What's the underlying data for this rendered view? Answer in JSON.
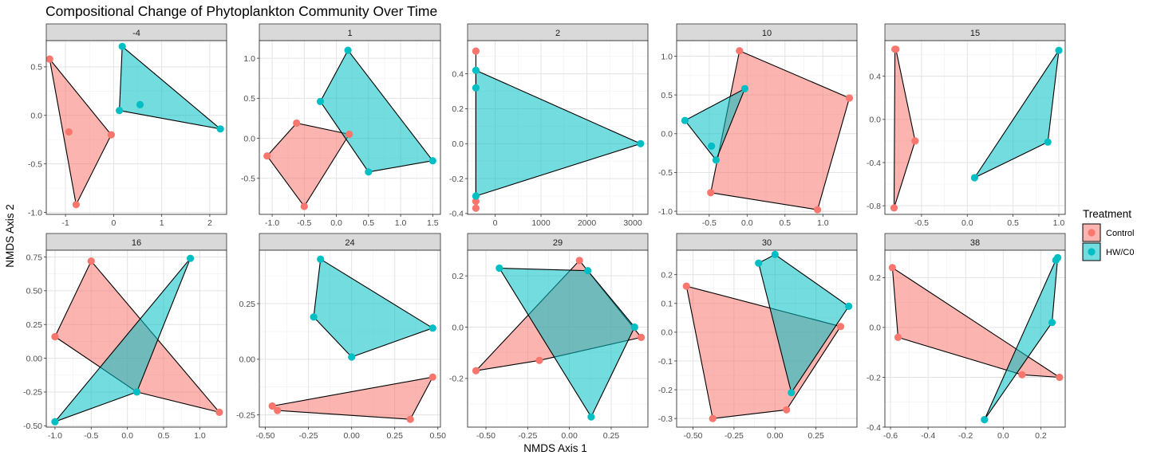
{
  "chart_data": {
    "type": "scatter",
    "title": "Compositional Change of Phytoplankton Community Over Time",
    "xlabel": "NMDS Axis 1",
    "ylabel": "NMDS Axis 2",
    "grid": true,
    "legend": {
      "title": "Treatment",
      "placement": "right",
      "entries": [
        {
          "name": "Control",
          "color": "#F8766D"
        },
        {
          "name": "HW/C0",
          "color": "#00BFC4"
        }
      ]
    },
    "panels": [
      {
        "label": "-4",
        "xlim": [
          -1.4,
          2.35
        ],
        "ylim": [
          -1.02,
          0.77
        ],
        "xticks": [
          -1,
          0,
          1,
          2
        ],
        "yticks": [
          -1.0,
          -0.5,
          0.0,
          0.5
        ],
        "xtick_labels": [
          "-1",
          "0",
          "1",
          "2"
        ],
        "ytick_labels": [
          "-1.0",
          "-0.5",
          "0.0",
          "0.5"
        ],
        "series": [
          {
            "name": "Control",
            "points": [
              [
                -1.33,
                0.58
              ],
              [
                -0.93,
                -0.17
              ],
              [
                -0.05,
                -0.2
              ],
              [
                -0.78,
                -0.92
              ]
            ]
          },
          {
            "name": "HW/C0",
            "points": [
              [
                0.18,
                0.71
              ],
              [
                0.12,
                0.05
              ],
              [
                0.55,
                0.11
              ],
              [
                2.22,
                -0.14
              ]
            ]
          }
        ]
      },
      {
        "label": "1",
        "xlim": [
          -1.2,
          1.62
        ],
        "ylim": [
          -0.95,
          1.22
        ],
        "xticks": [
          -1.0,
          -0.5,
          0.0,
          0.5,
          1.0,
          1.5
        ],
        "yticks": [
          -0.5,
          0.0,
          0.5,
          1.0
        ],
        "xtick_labels": [
          "-1.0",
          "-0.5",
          "0.0",
          "0.5",
          "1.0",
          "1.5"
        ],
        "ytick_labels": [
          "-0.5",
          "0.0",
          "0.5",
          "1.0"
        ],
        "series": [
          {
            "name": "Control",
            "points": [
              [
                -1.08,
                -0.22
              ],
              [
                -0.62,
                0.19
              ],
              [
                -0.5,
                -0.85
              ],
              [
                0.2,
                0.05
              ]
            ]
          },
          {
            "name": "HW/C0",
            "points": [
              [
                0.18,
                1.1
              ],
              [
                -0.25,
                0.46
              ],
              [
                0.5,
                -0.42
              ],
              [
                1.5,
                -0.28
              ]
            ]
          }
        ]
      },
      {
        "label": "2",
        "xlim": [
          -600,
          3330
        ],
        "ylim": [
          -0.405,
          0.59
        ],
        "xticks": [
          0,
          1000,
          2000,
          3000
        ],
        "yticks": [
          -0.4,
          -0.2,
          0.0,
          0.2,
          0.4
        ],
        "xtick_labels": [
          "0",
          "1000",
          "2000",
          "3000"
        ],
        "ytick_labels": [
          "-0.4",
          "-0.2",
          "0.0",
          "0.2",
          "0.4"
        ],
        "series": [
          {
            "name": "Control",
            "points": [
              [
                -420,
                0.53
              ],
              [
                -420,
                -0.33
              ],
              [
                -420,
                -0.37
              ]
            ]
          },
          {
            "name": "HW/C0",
            "points": [
              [
                -420,
                0.42
              ],
              [
                -420,
                0.32
              ],
              [
                -420,
                -0.3
              ],
              [
                3170,
                0.0
              ]
            ]
          }
        ]
      },
      {
        "label": "10",
        "xlim": [
          -0.93,
          1.45
        ],
        "ylim": [
          -1.04,
          1.2
        ],
        "xticks": [
          -0.5,
          0.0,
          0.5,
          1.0
        ],
        "yticks": [
          -1.0,
          -0.5,
          0.0,
          0.5,
          1.0
        ],
        "xtick_labels": [
          "-0.5",
          "0.0",
          "0.5",
          "1.0"
        ],
        "ytick_labels": [
          "-1.0",
          "-0.5",
          "0.0",
          "0.5",
          "1.0"
        ],
        "series": [
          {
            "name": "Control",
            "points": [
              [
                -0.1,
                1.07
              ],
              [
                1.35,
                0.46
              ],
              [
                0.93,
                -0.98
              ],
              [
                -0.48,
                -0.76
              ]
            ]
          },
          {
            "name": "HW/C0",
            "points": [
              [
                -0.82,
                0.17
              ],
              [
                -0.47,
                -0.16
              ],
              [
                -0.41,
                -0.34
              ],
              [
                -0.03,
                0.58
              ]
            ]
          }
        ]
      },
      {
        "label": "15",
        "xlim": [
          -0.9,
          1.07
        ],
        "ylim": [
          -0.88,
          0.73
        ],
        "xticks": [
          -0.5,
          0.0,
          0.5,
          1.0
        ],
        "yticks": [
          -0.8,
          -0.4,
          0.0,
          0.4
        ],
        "xtick_labels": [
          "-0.5",
          "0.0",
          "0.5",
          "1.0"
        ],
        "ytick_labels": [
          "-0.8",
          "-0.4",
          "0.0",
          "0.4"
        ],
        "series": [
          {
            "name": "Control",
            "points": [
              [
                -0.79,
                0.65
              ],
              [
                -0.78,
                0.65
              ],
              [
                -0.57,
                -0.2
              ],
              [
                -0.8,
                -0.82
              ]
            ]
          },
          {
            "name": "HW/C0",
            "points": [
              [
                1.0,
                0.64
              ],
              [
                0.88,
                -0.21
              ],
              [
                0.08,
                -0.54
              ]
            ]
          }
        ]
      },
      {
        "label": "16",
        "xlim": [
          -1.12,
          1.37
        ],
        "ylim": [
          -0.51,
          0.8
        ],
        "xticks": [
          -1.0,
          -0.5,
          0.0,
          0.5,
          1.0
        ],
        "yticks": [
          -0.5,
          -0.25,
          0.0,
          0.25,
          0.5,
          0.75
        ],
        "xtick_labels": [
          "-1.0",
          "-0.5",
          "0.0",
          "0.5",
          "1.0"
        ],
        "ytick_labels": [
          "-0.50",
          "-0.25",
          "0.00",
          "0.25",
          "0.50",
          "0.75"
        ],
        "series": [
          {
            "name": "Control",
            "points": [
              [
                -0.5,
                0.72
              ],
              [
                -1.0,
                0.16
              ],
              [
                1.27,
                -0.4
              ],
              [
                0.13,
                -0.25
              ]
            ]
          },
          {
            "name": "HW/C0",
            "points": [
              [
                0.87,
                0.74
              ],
              [
                -1.0,
                -0.47
              ],
              [
                0.13,
                -0.25
              ]
            ]
          }
        ]
      },
      {
        "label": "24",
        "xlim": [
          -0.535,
          0.515
        ],
        "ylim": [
          -0.305,
          0.49
        ],
        "xticks": [
          -0.5,
          -0.25,
          0.0,
          0.25,
          0.5
        ],
        "yticks": [
          -0.25,
          0.0,
          0.25
        ],
        "xtick_labels": [
          "-0.50",
          "-0.25",
          "0.00",
          "0.25",
          "0.50"
        ],
        "ytick_labels": [
          "-0.25",
          "0.00",
          "0.25"
        ],
        "series": [
          {
            "name": "Control",
            "points": [
              [
                -0.46,
                -0.21
              ],
              [
                0.47,
                -0.08
              ],
              [
                -0.43,
                -0.23
              ],
              [
                0.34,
                -0.27
              ]
            ]
          },
          {
            "name": "HW/C0",
            "points": [
              [
                -0.18,
                0.45
              ],
              [
                0.47,
                0.14
              ],
              [
                -0.22,
                0.19
              ],
              [
                0.0,
                0.01
              ]
            ]
          }
        ]
      },
      {
        "label": "29",
        "xlim": [
          -0.61,
          0.47
        ],
        "ylim": [
          -0.39,
          0.3
        ],
        "xticks": [
          -0.5,
          -0.25,
          0.0,
          0.25
        ],
        "yticks": [
          -0.2,
          0.0,
          0.2
        ],
        "xtick_labels": [
          "-0.50",
          "-0.25",
          "0.00",
          "0.25"
        ],
        "ytick_labels": [
          "-0.2",
          "0.0",
          "0.2"
        ],
        "series": [
          {
            "name": "Control",
            "points": [
              [
                0.06,
                0.26
              ],
              [
                0.43,
                -0.04
              ],
              [
                -0.18,
                -0.13
              ],
              [
                -0.56,
                -0.17
              ]
            ]
          },
          {
            "name": "HW/C0",
            "points": [
              [
                -0.42,
                0.23
              ],
              [
                0.11,
                0.22
              ],
              [
                0.39,
                0.0
              ],
              [
                0.13,
                -0.35
              ]
            ]
          }
        ]
      },
      {
        "label": "30",
        "xlim": [
          -0.6,
          0.5
        ],
        "ylim": [
          -0.33,
          0.285
        ],
        "xticks": [
          -0.5,
          -0.25,
          0.0,
          0.25
        ],
        "yticks": [
          -0.3,
          -0.2,
          -0.1,
          0.0,
          0.1,
          0.2
        ],
        "xtick_labels": [
          "-0.50",
          "-0.25",
          "0.00",
          "0.25"
        ],
        "ytick_labels": [
          "-0.3",
          "-0.2",
          "-0.1",
          "0.0",
          "0.1",
          "0.2"
        ],
        "series": [
          {
            "name": "Control",
            "points": [
              [
                -0.54,
                0.16
              ],
              [
                0.4,
                0.02
              ],
              [
                0.07,
                -0.27
              ],
              [
                -0.38,
                -0.3
              ]
            ]
          },
          {
            "name": "HW/C0",
            "points": [
              [
                -0.1,
                0.24
              ],
              [
                0.0,
                0.27
              ],
              [
                0.45,
                0.09
              ],
              [
                0.1,
                -0.21
              ]
            ]
          }
        ]
      },
      {
        "label": "38",
        "xlim": [
          -0.63,
          0.33
        ],
        "ylim": [
          -0.4,
          0.31
        ],
        "xticks": [
          -0.6,
          -0.4,
          -0.2,
          0.0,
          0.2
        ],
        "yticks": [
          -0.4,
          -0.2,
          0.0,
          0.2
        ],
        "xtick_labels": [
          "-0.6",
          "-0.4",
          "-0.2",
          "0.0",
          "0.2"
        ],
        "ytick_labels": [
          "-0.4",
          "-0.2",
          "0.0",
          "0.2"
        ],
        "series": [
          {
            "name": "Control",
            "points": [
              [
                -0.59,
                0.24
              ],
              [
                0.3,
                -0.2
              ],
              [
                0.1,
                -0.19
              ],
              [
                -0.56,
                -0.04
              ]
            ]
          },
          {
            "name": "HW/C0",
            "points": [
              [
                0.28,
                0.27
              ],
              [
                0.29,
                0.28
              ],
              [
                0.26,
                0.02
              ],
              [
                -0.1,
                -0.37
              ]
            ]
          }
        ]
      }
    ]
  }
}
